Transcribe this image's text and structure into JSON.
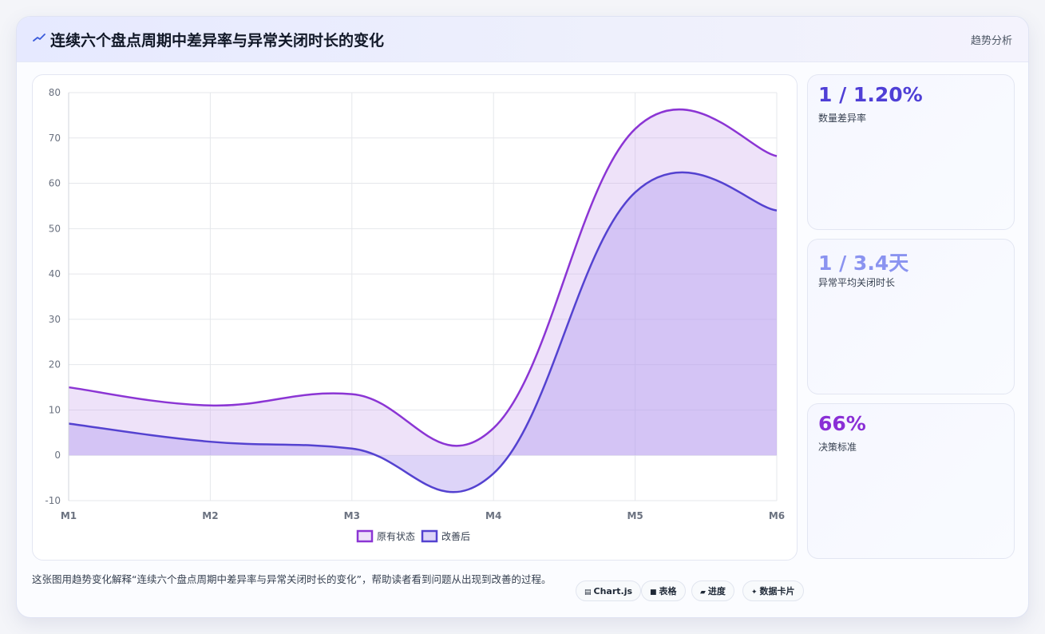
{
  "header": {
    "title": "连续六个盘点周期中差异率与异常关闭时长的变化",
    "badge": "趋势分析"
  },
  "kpis": [
    {
      "value": "1 / 1.20%",
      "label": "数量差异率",
      "color": "#4f3fd6"
    },
    {
      "value": "1 / 3.4天",
      "label": "异常平均关闭时长",
      "color": "#8a93f0"
    },
    {
      "value": "66%",
      "label": "决策标准",
      "color": "#8a2fd6"
    }
  ],
  "footer": {
    "description": "这张图用趋势变化解释“连续六个盘点周期中差异率与异常关闭时长的变化”，帮助读者看到问题从出现到改善的过程。",
    "tags": [
      {
        "icon": "chart-icon",
        "glyph": "▤",
        "label": "Chart.js"
      },
      {
        "icon": "table-icon",
        "glyph": "■",
        "label": "表格"
      },
      {
        "icon": "progress-icon",
        "glyph": "▰",
        "label": "进度"
      },
      {
        "icon": "sparkle-icon",
        "glyph": "✦",
        "label": "数据卡片"
      }
    ]
  },
  "chart_data": {
    "type": "area",
    "categories": [
      "M1",
      "M2",
      "M3",
      "M4",
      "M5",
      "M6"
    ],
    "series": [
      {
        "name": "原有状态",
        "values": [
          15,
          11,
          13.5,
          6,
          72,
          66
        ],
        "color": "#8b35d4",
        "fill": "rgba(200,160,235,0.30)"
      },
      {
        "name": "改善后",
        "values": [
          7,
          3,
          1.5,
          -4,
          58,
          54
        ],
        "color": "#5442d0",
        "fill": "rgba(180,160,240,0.45)"
      }
    ],
    "ylim": [
      -10,
      80
    ],
    "yticks": [
      80,
      70,
      60,
      50,
      40,
      30,
      20,
      10,
      0,
      -10
    ],
    "grid": true,
    "legend": "bottom"
  }
}
